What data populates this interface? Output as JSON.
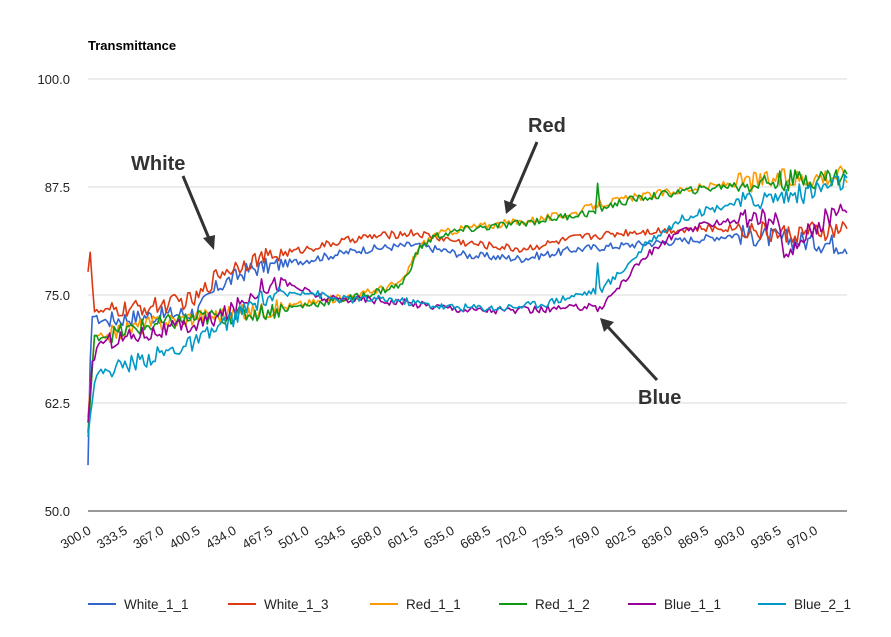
{
  "chart_data": {
    "type": "line",
    "ylabel": "Transmittance",
    "ylim": [
      50,
      100
    ],
    "yticks": [
      "100.0",
      "87.5",
      "75.0",
      "62.5",
      "50.0"
    ],
    "xlim": [
      300,
      1000
    ],
    "xticks": [
      "300.0",
      "333.5",
      "367.0",
      "400.5",
      "434.0",
      "467.5",
      "501.0",
      "534.5",
      "568.0",
      "601.5",
      "635.0",
      "668.5",
      "702.0",
      "735.5",
      "769.0",
      "802.5",
      "836.0",
      "869.5",
      "903.0",
      "936.5",
      "970.0"
    ],
    "grid": true,
    "legend_position": "bottom",
    "annotations": [
      "White",
      "Red",
      "Blue"
    ],
    "series": [
      {
        "name": "White_1_1",
        "color": "#3366cc",
        "points": [
          [
            300,
            55
          ],
          [
            303,
            73
          ],
          [
            310,
            72
          ],
          [
            350,
            72.5
          ],
          [
            400,
            73
          ],
          [
            420,
            76
          ],
          [
            450,
            78
          ],
          [
            500,
            79
          ],
          [
            550,
            80.2
          ],
          [
            600,
            80.8
          ],
          [
            650,
            79.6
          ],
          [
            700,
            79.2
          ],
          [
            750,
            80.3
          ],
          [
            800,
            80.8
          ],
          [
            850,
            81.3
          ],
          [
            900,
            82
          ],
          [
            940,
            81.5
          ],
          [
            1000,
            80.8
          ]
        ]
      },
      {
        "name": "White_1_3",
        "color": "#dc3912",
        "points": [
          [
            300,
            78
          ],
          [
            302,
            80
          ],
          [
            306,
            73
          ],
          [
            350,
            73.5
          ],
          [
            400,
            74.5
          ],
          [
            420,
            77.5
          ],
          [
            450,
            79
          ],
          [
            500,
            80.3
          ],
          [
            550,
            81.6
          ],
          [
            600,
            82.2
          ],
          [
            650,
            81
          ],
          [
            700,
            80.3
          ],
          [
            750,
            81.6
          ],
          [
            800,
            82.3
          ],
          [
            850,
            82.6
          ],
          [
            900,
            82.8
          ],
          [
            940,
            82
          ],
          [
            1000,
            82.5
          ]
        ]
      },
      {
        "name": "Red_1_1",
        "color": "#ff9900",
        "points": [
          [
            300,
            61
          ],
          [
            306,
            70
          ],
          [
            350,
            71.5
          ],
          [
            400,
            72.5
          ],
          [
            450,
            73
          ],
          [
            500,
            74
          ],
          [
            550,
            75
          ],
          [
            590,
            76.5
          ],
          [
            605,
            80.5
          ],
          [
            620,
            82
          ],
          [
            650,
            82.8
          ],
          [
            700,
            83.5
          ],
          [
            750,
            84.5
          ],
          [
            770,
            85.5
          ],
          [
            800,
            86.2
          ],
          [
            850,
            87.2
          ],
          [
            900,
            88
          ],
          [
            950,
            88.5
          ],
          [
            1000,
            89
          ]
        ]
      },
      {
        "name": "Red_1_2",
        "color": "#109618",
        "points": [
          [
            300,
            59
          ],
          [
            306,
            70
          ],
          [
            350,
            71.3
          ],
          [
            400,
            72.3
          ],
          [
            450,
            72.8
          ],
          [
            500,
            73.8
          ],
          [
            550,
            74.8
          ],
          [
            590,
            76.2
          ],
          [
            605,
            80.3
          ],
          [
            620,
            81.8
          ],
          [
            650,
            82.6
          ],
          [
            700,
            83.3
          ],
          [
            750,
            84.3
          ],
          [
            769,
            84.6
          ],
          [
            770,
            87.5
          ],
          [
            772,
            85
          ],
          [
            800,
            86
          ],
          [
            850,
            87
          ],
          [
            900,
            87.8
          ],
          [
            950,
            88.3
          ],
          [
            1000,
            88.8
          ]
        ]
      },
      {
        "name": "Blue_1_1",
        "color": "#990099",
        "points": [
          [
            300,
            60
          ],
          [
            304,
            67
          ],
          [
            310,
            69.5
          ],
          [
            350,
            70.5
          ],
          [
            400,
            71.5
          ],
          [
            430,
            73
          ],
          [
            460,
            76
          ],
          [
            480,
            76.5
          ],
          [
            500,
            75.5
          ],
          [
            520,
            74.5
          ],
          [
            560,
            74.5
          ],
          [
            600,
            74
          ],
          [
            650,
            73.3
          ],
          [
            700,
            73.2
          ],
          [
            750,
            73.5
          ],
          [
            768,
            74
          ],
          [
            770,
            72.8
          ],
          [
            775,
            74
          ],
          [
            790,
            76
          ],
          [
            810,
            79
          ],
          [
            840,
            82
          ],
          [
            880,
            83.5
          ],
          [
            920,
            83.8
          ],
          [
            935,
            83.5
          ],
          [
            945,
            79
          ],
          [
            960,
            82
          ],
          [
            1000,
            85.5
          ]
        ]
      },
      {
        "name": "Blue_2_1",
        "color": "#0099c6",
        "points": [
          [
            300,
            59
          ],
          [
            306,
            65
          ],
          [
            310,
            66
          ],
          [
            350,
            67.5
          ],
          [
            400,
            69.5
          ],
          [
            430,
            72
          ],
          [
            460,
            74.5
          ],
          [
            500,
            75.5
          ],
          [
            530,
            74.5
          ],
          [
            580,
            74.5
          ],
          [
            630,
            73.6
          ],
          [
            680,
            73.5
          ],
          [
            720,
            74
          ],
          [
            750,
            75
          ],
          [
            768,
            75.5
          ],
          [
            770,
            78.5
          ],
          [
            772,
            75.5
          ],
          [
            790,
            77.5
          ],
          [
            820,
            81.5
          ],
          [
            850,
            84
          ],
          [
            890,
            85.5
          ],
          [
            930,
            86.3
          ],
          [
            960,
            86.8
          ],
          [
            1000,
            88.3
          ]
        ]
      }
    ]
  }
}
